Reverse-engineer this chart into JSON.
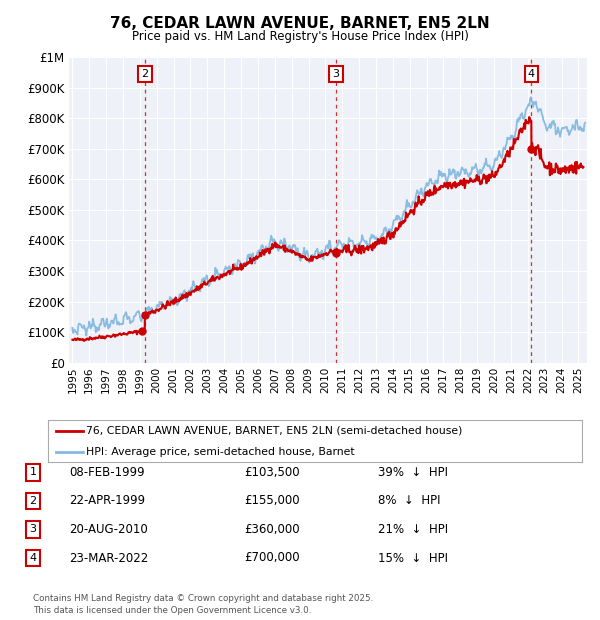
{
  "title": "76, CEDAR LAWN AVENUE, BARNET, EN5 2LN",
  "subtitle": "Price paid vs. HM Land Registry's House Price Index (HPI)",
  "legend_line1": "76, CEDAR LAWN AVENUE, BARNET, EN5 2LN (semi-detached house)",
  "legend_line2": "HPI: Average price, semi-detached house, Barnet",
  "footer": "Contains HM Land Registry data © Crown copyright and database right 2025.\nThis data is licensed under the Open Government Licence v3.0.",
  "transactions": [
    {
      "num": 1,
      "date": "08-FEB-1999",
      "price": 103500,
      "pct": "39%",
      "dir": "↓",
      "year": 1999.1
    },
    {
      "num": 2,
      "date": "22-APR-1999",
      "price": 155000,
      "pct": "8%",
      "dir": "↓",
      "year": 1999.3
    },
    {
      "num": 3,
      "date": "20-AUG-2010",
      "price": 360000,
      "pct": "21%",
      "dir": "↓",
      "year": 2010.63
    },
    {
      "num": 4,
      "date": "23-MAR-2022",
      "price": 700000,
      "pct": "15%",
      "dir": "↓",
      "year": 2022.22
    }
  ],
  "price_line_color": "#cc0000",
  "hpi_line_color": "#85b8e0",
  "dashed_line_color": "#cc3333",
  "box_edge_color": "#cc0000",
  "plot_bg_color": "#eef2f8",
  "ylim": [
    0,
    1000000
  ],
  "xlim_start": 1994.8,
  "xlim_end": 2025.5,
  "yticks": [
    0,
    100000,
    200000,
    300000,
    400000,
    500000,
    600000,
    700000,
    800000,
    900000,
    1000000
  ],
  "ytick_labels": [
    "£0",
    "£100K",
    "£200K",
    "£300K",
    "£400K",
    "£500K",
    "£600K",
    "£700K",
    "£800K",
    "£900K",
    "£1M"
  ],
  "xtick_years": [
    1995,
    1996,
    1997,
    1998,
    1999,
    2000,
    2001,
    2002,
    2003,
    2004,
    2005,
    2006,
    2007,
    2008,
    2009,
    2010,
    2011,
    2012,
    2013,
    2014,
    2015,
    2016,
    2017,
    2018,
    2019,
    2020,
    2021,
    2022,
    2023,
    2024,
    2025
  ],
  "hpi_anchor_years": [
    1995,
    1996,
    1997,
    1998,
    1999,
    2000,
    2001,
    2002,
    2003,
    2004,
    2005,
    2006,
    2007,
    2008,
    2009,
    2010,
    2011,
    2012,
    2013,
    2014,
    2015,
    2016,
    2017,
    2018,
    2019,
    2020,
    2021,
    2022,
    2022.5,
    2023,
    2024,
    2025
  ],
  "hpi_anchor_values": [
    110000,
    118000,
    128000,
    140000,
    152000,
    178000,
    205000,
    235000,
    270000,
    298000,
    322000,
    358000,
    398000,
    375000,
    345000,
    368000,
    388000,
    390000,
    405000,
    448000,
    518000,
    578000,
    615000,
    622000,
    632000,
    645000,
    735000,
    840000,
    855000,
    780000,
    760000,
    775000
  ]
}
